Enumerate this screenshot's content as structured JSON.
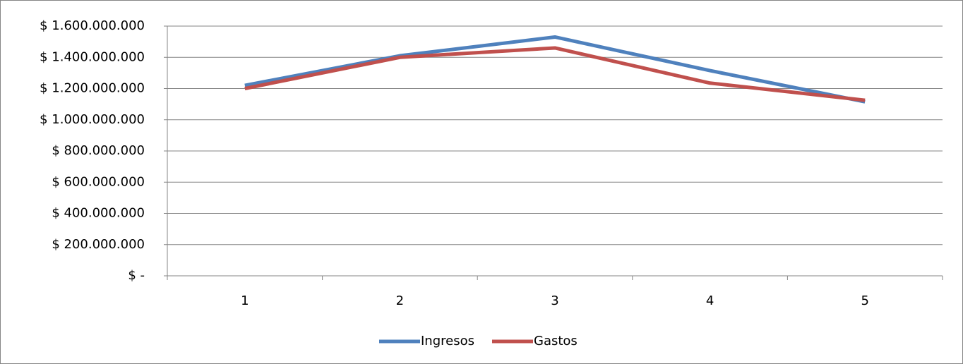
{
  "chart_data": {
    "type": "line",
    "categories": [
      "1",
      "2",
      "3",
      "4",
      "5"
    ],
    "series": [
      {
        "name": "Ingresos",
        "color": "#4f81bd",
        "values": [
          1220000000,
          1410000000,
          1530000000,
          1315000000,
          1115000000
        ]
      },
      {
        "name": "Gastos",
        "color": "#c0504d",
        "values": [
          1200000000,
          1400000000,
          1460000000,
          1235000000,
          1125000000
        ]
      }
    ],
    "ylim": [
      0,
      1600000000
    ],
    "yticks": [
      {
        "value": 0,
        "label": "$ -"
      },
      {
        "value": 200000000,
        "label": "$ 200.000.000"
      },
      {
        "value": 400000000,
        "label": "$ 400.000.000"
      },
      {
        "value": 600000000,
        "label": "$ 600.000.000"
      },
      {
        "value": 800000000,
        "label": "$ 800.000.000"
      },
      {
        "value": 1000000000,
        "label": "$ 1.000.000.000"
      },
      {
        "value": 1200000000,
        "label": "$ 1.200.000.000"
      },
      {
        "value": 1400000000,
        "label": "$ 1.400.000.000"
      },
      {
        "value": 1600000000,
        "label": "$ 1.600.000.000"
      }
    ],
    "grid": true,
    "legend": "bottom"
  }
}
